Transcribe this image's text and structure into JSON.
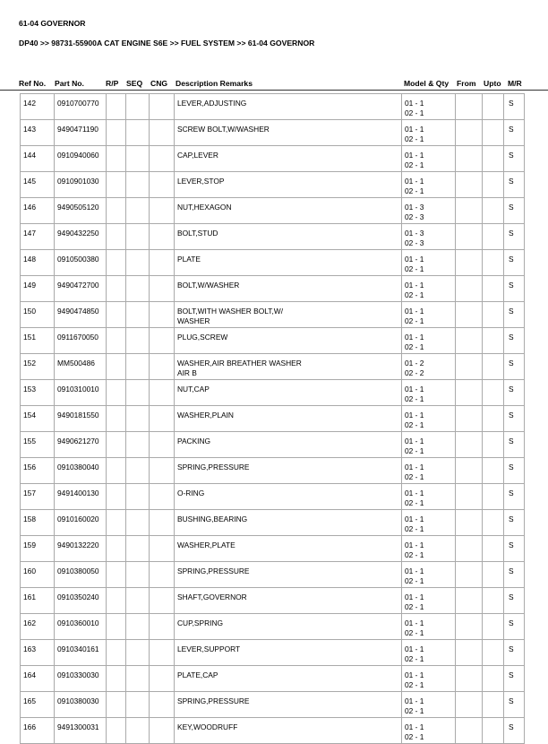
{
  "page_title": "61-04 GOVERNOR",
  "breadcrumb": "DP40 >> 98731-55900A CAT ENGINE S6E >> FUEL SYSTEM >> 61-04 GOVERNOR",
  "columns": {
    "ref": "Ref No.",
    "part": "Part No.",
    "rp": "R/P",
    "seq": "SEQ",
    "cng": "CNG",
    "desc": "Description Remarks",
    "model": "Model & Qty",
    "from": "From",
    "upto": "Upto",
    "mr": "M/R"
  },
  "rows": [
    {
      "ref": "142",
      "part": "0910700770",
      "desc": [
        "LEVER,ADJUSTING"
      ],
      "model": [
        "01 - 1",
        "02 - 1"
      ],
      "mr": "S"
    },
    {
      "ref": "143",
      "part": "9490471190",
      "desc": [
        "SCREW BOLT,W/WASHER"
      ],
      "model": [
        "01 - 1",
        "02 - 1"
      ],
      "mr": "S"
    },
    {
      "ref": "144",
      "part": "0910940060",
      "desc": [
        "CAP,LEVER"
      ],
      "model": [
        "01 - 1",
        "02 - 1"
      ],
      "mr": "S"
    },
    {
      "ref": "145",
      "part": "0910901030",
      "desc": [
        "LEVER,STOP"
      ],
      "model": [
        "01 - 1",
        "02 - 1"
      ],
      "mr": "S"
    },
    {
      "ref": "146",
      "part": "9490505120",
      "desc": [
        "NUT,HEXAGON"
      ],
      "model": [
        "01 - 3",
        "02 - 3"
      ],
      "mr": "S"
    },
    {
      "ref": "147",
      "part": "9490432250",
      "desc": [
        "BOLT,STUD"
      ],
      "model": [
        "01 - 3",
        "02 - 3"
      ],
      "mr": "S"
    },
    {
      "ref": "148",
      "part": "0910500380",
      "desc": [
        "PLATE"
      ],
      "model": [
        "01 - 1",
        "02 - 1"
      ],
      "mr": "S"
    },
    {
      "ref": "149",
      "part": "9490472700",
      "desc": [
        "BOLT,W/WASHER"
      ],
      "model": [
        "01 - 1",
        "02 - 1"
      ],
      "mr": "S"
    },
    {
      "ref": "150",
      "part": "9490474850",
      "desc": [
        "BOLT,WITH WASHER BOLT,W/",
        "WASHER"
      ],
      "model": [
        "01 - 1",
        "02 - 1"
      ],
      "mr": "S"
    },
    {
      "ref": "151",
      "part": "0911670050",
      "desc": [
        "PLUG,SCREW"
      ],
      "model": [
        "01 - 1",
        "02 - 1"
      ],
      "mr": "S"
    },
    {
      "ref": "152",
      "part": "MM500486",
      "desc": [
        "WASHER,AIR BREATHER WASHER",
        "AIR B"
      ],
      "model": [
        "01 - 2",
        "02 - 2"
      ],
      "mr": "S"
    },
    {
      "ref": "153",
      "part": "0910310010",
      "desc": [
        "NUT,CAP"
      ],
      "model": [
        "01 - 1",
        "02 - 1"
      ],
      "mr": "S"
    },
    {
      "ref": "154",
      "part": "9490181550",
      "desc": [
        "WASHER,PLAIN"
      ],
      "model": [
        "01 - 1",
        "02 - 1"
      ],
      "mr": "S"
    },
    {
      "ref": "155",
      "part": "9490621270",
      "desc": [
        "PACKING"
      ],
      "model": [
        "01 - 1",
        "02 - 1"
      ],
      "mr": "S"
    },
    {
      "ref": "156",
      "part": "0910380040",
      "desc": [
        "SPRING,PRESSURE"
      ],
      "model": [
        "01 - 1",
        "02 - 1"
      ],
      "mr": "S"
    },
    {
      "ref": "157",
      "part": "9491400130",
      "desc": [
        "O-RING"
      ],
      "model": [
        "01 - 1",
        "02 - 1"
      ],
      "mr": "S"
    },
    {
      "ref": "158",
      "part": "0910160020",
      "desc": [
        "BUSHING,BEARING"
      ],
      "model": [
        "01 - 1",
        "02 - 1"
      ],
      "mr": "S"
    },
    {
      "ref": "159",
      "part": "9490132220",
      "desc": [
        "WASHER,PLATE"
      ],
      "model": [
        "01 - 1",
        "02 - 1"
      ],
      "mr": "S"
    },
    {
      "ref": "160",
      "part": "0910380050",
      "desc": [
        "SPRING,PRESSURE"
      ],
      "model": [
        "01 - 1",
        "02 - 1"
      ],
      "mr": "S"
    },
    {
      "ref": "161",
      "part": "0910350240",
      "desc": [
        "SHAFT,GOVERNOR"
      ],
      "model": [
        "01 - 1",
        "02 - 1"
      ],
      "mr": "S"
    },
    {
      "ref": "162",
      "part": "0910360010",
      "desc": [
        "CUP,SPRING"
      ],
      "model": [
        "01 - 1",
        "02 - 1"
      ],
      "mr": "S"
    },
    {
      "ref": "163",
      "part": "0910340161",
      "desc": [
        "LEVER,SUPPORT"
      ],
      "model": [
        "01 - 1",
        "02 - 1"
      ],
      "mr": "S"
    },
    {
      "ref": "164",
      "part": "0910330030",
      "desc": [
        "PLATE,CAP"
      ],
      "model": [
        "01 - 1",
        "02 - 1"
      ],
      "mr": "S"
    },
    {
      "ref": "165",
      "part": "0910380030",
      "desc": [
        "SPRING,PRESSURE"
      ],
      "model": [
        "01 - 1",
        "02 - 1"
      ],
      "mr": "S"
    },
    {
      "ref": "166",
      "part": "9491300031",
      "desc": [
        "KEY,WOODRUFF"
      ],
      "model": [
        "01 - 1",
        "02 - 1"
      ],
      "mr": "S"
    }
  ]
}
